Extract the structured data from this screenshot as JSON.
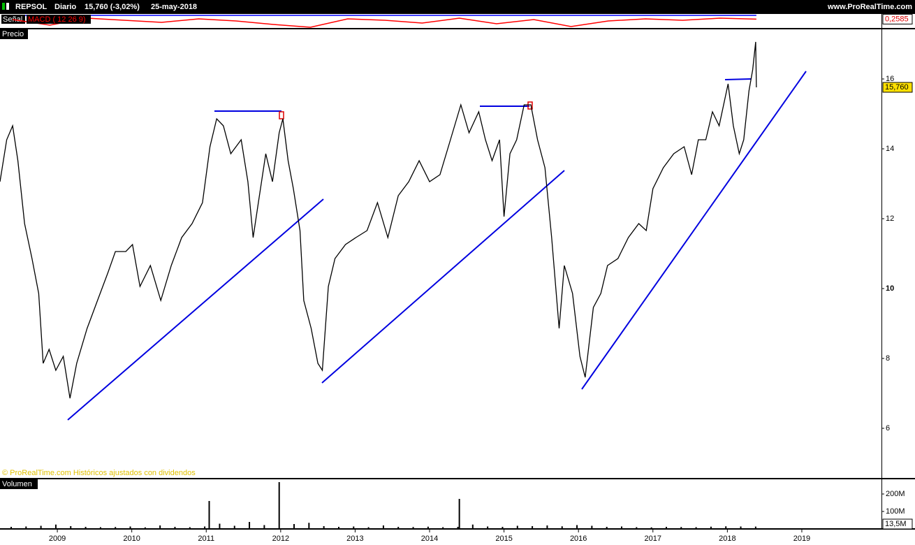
{
  "header": {
    "symbol": "REPSOL",
    "period": "Diario",
    "quote": "15,760 (-3,02%)",
    "date": "25-may-2018",
    "site": "www.ProRealTime.com"
  },
  "chart_data": [
    {
      "type": "line",
      "label": "Precio",
      "source": "© ProRealTime.com Históricos ajustados con dividendos",
      "color": "#000000",
      "x": [
        2008.23,
        2008.32,
        2008.4,
        2008.47,
        2008.56,
        2008.66,
        2008.75,
        2008.81,
        2008.89,
        2008.98,
        2009.08,
        2009.17,
        2009.26,
        2009.4,
        2009.54,
        2009.68,
        2009.78,
        2009.92,
        2010.01,
        2010.11,
        2010.25,
        2010.39,
        2010.53,
        2010.67,
        2010.81,
        2010.95,
        2011.05,
        2011.14,
        2011.23,
        2011.33,
        2011.47,
        2011.56,
        2011.63,
        2011.7,
        2011.8,
        2011.89,
        2011.98,
        2012.03,
        2012.1,
        2012.17,
        2012.26,
        2012.31,
        2012.41,
        2012.5,
        2012.56,
        2012.64,
        2012.73,
        2012.87,
        2013.01,
        2013.16,
        2013.3,
        2013.44,
        2013.58,
        2013.72,
        2013.86,
        2014.0,
        2014.14,
        2014.28,
        2014.42,
        2014.53,
        2014.66,
        2014.75,
        2014.84,
        2014.94,
        2015.0,
        2015.08,
        2015.17,
        2015.27,
        2015.36,
        2015.45,
        2015.55,
        2015.64,
        2015.74,
        2015.81,
        2015.92,
        2016.02,
        2016.09,
        2016.2,
        2016.3,
        2016.39,
        2016.53,
        2016.67,
        2016.81,
        2016.91,
        2017.0,
        2017.14,
        2017.28,
        2017.42,
        2017.52,
        2017.61,
        2017.71,
        2017.8,
        2017.89,
        2018.01,
        2018.08,
        2018.16,
        2018.22,
        2018.29,
        2018.34,
        2018.38,
        2018.39
      ],
      "values": [
        13.06,
        14.26,
        14.66,
        13.66,
        11.86,
        10.86,
        9.86,
        7.86,
        8.26,
        7.66,
        8.06,
        6.86,
        7.86,
        8.86,
        9.66,
        10.46,
        11.06,
        11.06,
        11.26,
        10.06,
        10.66,
        9.66,
        10.66,
        11.46,
        11.86,
        12.46,
        14.06,
        14.86,
        14.66,
        13.86,
        14.26,
        13.06,
        11.46,
        12.46,
        13.86,
        13.06,
        14.46,
        14.86,
        13.66,
        12.86,
        11.66,
        9.66,
        8.86,
        7.86,
        7.66,
        10.06,
        10.86,
        11.26,
        11.46,
        11.66,
        12.46,
        11.46,
        12.66,
        13.06,
        13.66,
        13.06,
        13.26,
        14.26,
        15.26,
        14.46,
        15.06,
        14.26,
        13.66,
        14.26,
        12.06,
        13.86,
        14.26,
        15.26,
        15.26,
        14.26,
        13.46,
        11.46,
        8.86,
        10.66,
        9.86,
        8.06,
        7.46,
        9.46,
        9.86,
        10.66,
        10.86,
        11.46,
        11.86,
        11.66,
        12.86,
        13.46,
        13.86,
        14.06,
        13.26,
        14.26,
        14.26,
        15.06,
        14.66,
        15.86,
        14.66,
        13.86,
        14.26,
        15.66,
        16.26,
        17.06,
        15.76
      ],
      "last": {
        "value": 15.76,
        "label": "15,760"
      },
      "xlim": [
        2008.23,
        2020.07
      ],
      "xticks": [
        2009,
        2010,
        2011,
        2012,
        2013,
        2014,
        2015,
        2016,
        2017,
        2018,
        2019
      ],
      "ylim": [
        4.58,
        17.42
      ],
      "yticks": [
        6,
        8,
        10,
        12,
        14,
        16
      ]
    },
    {
      "type": "bar",
      "label": "Volumen",
      "color": "#000000",
      "x": [
        2008.38,
        2008.58,
        2008.78,
        2008.98,
        2009.18,
        2009.38,
        2009.58,
        2009.78,
        2009.98,
        2010.18,
        2010.38,
        2010.58,
        2010.78,
        2010.98,
        2011.04,
        2011.18,
        2011.38,
        2011.58,
        2011.78,
        2011.98,
        2012.18,
        2012.38,
        2012.58,
        2012.78,
        2012.98,
        2013.18,
        2013.38,
        2013.58,
        2013.78,
        2013.98,
        2014.18,
        2014.38,
        2014.4,
        2014.58,
        2014.78,
        2014.98,
        2015.18,
        2015.38,
        2015.58,
        2015.78,
        2015.98,
        2016.18,
        2016.38,
        2016.58,
        2016.78,
        2016.98,
        2017.18,
        2017.38,
        2017.58,
        2017.78,
        2017.98,
        2018.18,
        2018.38
      ],
      "values": [
        12,
        14,
        18,
        25,
        16,
        12,
        10,
        11,
        14,
        9,
        20,
        12,
        10,
        14,
        160,
        30,
        18,
        40,
        22,
        268,
        28,
        35,
        16,
        12,
        14,
        10,
        20,
        12,
        11,
        13,
        10,
        12,
        172,
        25,
        14,
        12,
        18,
        16,
        20,
        15,
        22,
        18,
        12,
        14,
        10,
        9,
        12,
        11,
        10,
        13,
        15,
        14,
        13.5
      ],
      "last": {
        "value": 13.5,
        "label": "13,5M"
      },
      "xlim": [
        2008.23,
        2020.07
      ],
      "ylim": [
        0,
        284
      ],
      "yticks": [
        {
          "value": 100,
          "label": "100M"
        },
        {
          "value": 200,
          "label": "200M"
        }
      ]
    },
    {
      "type": "line",
      "x": [
        2008.4,
        2008.9,
        2009.4,
        2009.9,
        2010.4,
        2010.9,
        2011.4,
        2011.9,
        2012.4,
        2012.9,
        2013.4,
        2013.9,
        2014.4,
        2014.9,
        2015.4,
        2015.9,
        2016.4,
        2016.9,
        2017.4,
        2017.9,
        2018.39
      ],
      "series": [
        {
          "name": "Señal",
          "color": "#0000ff",
          "values": [
            0.8,
            0.8,
            0.8,
            0.8,
            0.8,
            0.8,
            0.8,
            0.8,
            0.8,
            0.8,
            0.8,
            0.8,
            0.8,
            0.8,
            0.8,
            0.8,
            0.8,
            0.8,
            0.8,
            0.8,
            0.8
          ]
        },
        {
          "name": "MACD ( 12 26 9)",
          "color": "#ff0000",
          "values": [
            0.2,
            -0.6,
            0.4,
            0.1,
            -0.2,
            0.3,
            0.0,
            -0.5,
            -0.9,
            0.3,
            0.1,
            -0.3,
            0.4,
            -0.4,
            0.2,
            -0.8,
            0.0,
            0.3,
            0.1,
            0.4,
            0.2585
          ]
        }
      ],
      "last": {
        "value": 0.2585,
        "label": "0,2585"
      },
      "xlim": [
        2008.23,
        2020.07
      ],
      "ylim": [
        -1,
        1
      ]
    }
  ]
}
